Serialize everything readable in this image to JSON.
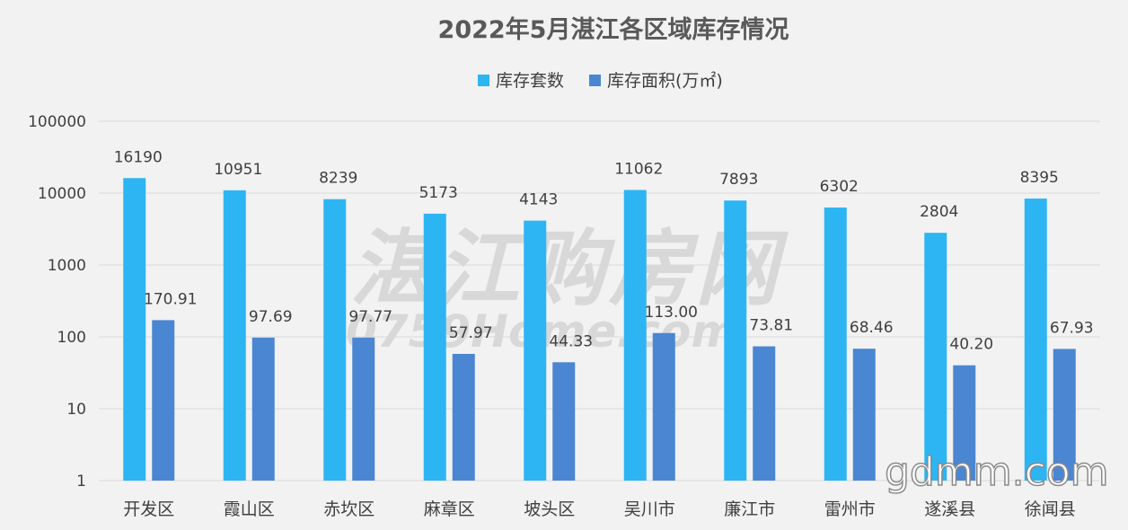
{
  "colors": {
    "units": "#2db5f3",
    "area": "#4a86d2",
    "grid": "#d9d9d9",
    "text": "#404040",
    "title": "#595959"
  },
  "watermarks": {
    "main_cn": "湛江购房网",
    "main_en": "0759Home.com",
    "corner": "gdmm.com"
  },
  "chart_data": {
    "type": "bar",
    "title": "2022年5月湛江各区域库存情况",
    "y_scale": "log",
    "ylim": [
      1,
      100000
    ],
    "y_ticks": [
      "1",
      "10",
      "100",
      "1000",
      "10000",
      "100000"
    ],
    "y_tick_values": [
      1,
      10,
      100,
      1000,
      10000,
      100000
    ],
    "grid": true,
    "legend_position": "top",
    "categories": [
      "开发区",
      "霞山区",
      "赤坎区",
      "麻章区",
      "坡头区",
      "吴川市",
      "廉江市",
      "雷州市",
      "遂溪县",
      "徐闻县"
    ],
    "series": [
      {
        "name": "库存套数",
        "color": "#2db5f3",
        "values": [
          16190,
          10951,
          8239,
          5173,
          4143,
          11062,
          7893,
          6302,
          2804,
          8395
        ],
        "labels": [
          "16190",
          "10951",
          "8239",
          "5173",
          "4143",
          "11062",
          "7893",
          "6302",
          "2804",
          "8395"
        ]
      },
      {
        "name": "库存面积(万㎡)",
        "color": "#4a86d2",
        "values": [
          170.91,
          97.69,
          97.77,
          57.97,
          44.33,
          113.0,
          73.81,
          68.46,
          40.2,
          67.93
        ],
        "labels": [
          "170.91",
          "97.69",
          "97.77",
          "57.97",
          "44.33",
          "113.00",
          "73.81",
          "68.46",
          "40.20",
          "67.93"
        ]
      }
    ]
  }
}
